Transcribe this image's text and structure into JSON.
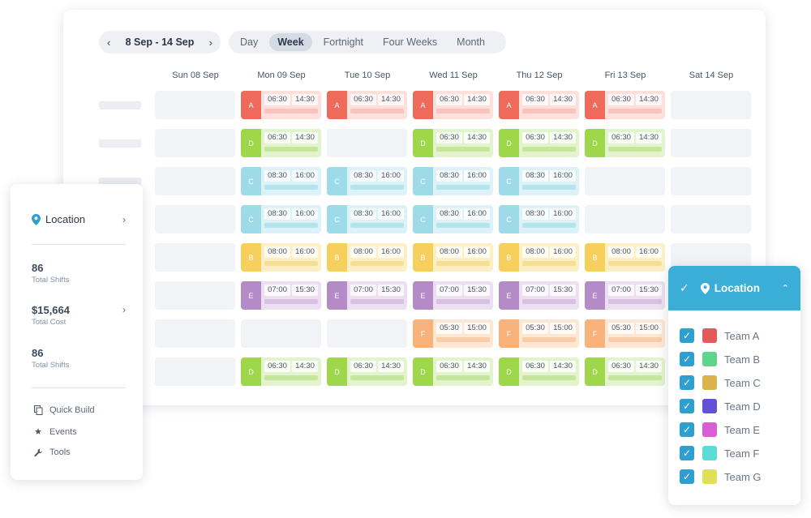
{
  "schedule": {
    "date_range": "8 Sep - 14 Sep",
    "prev_icon": "‹",
    "next_icon": "›",
    "views": [
      "Day",
      "Week",
      "Fortnight",
      "Four Weeks",
      "Month"
    ],
    "active_view": "Week",
    "days": [
      "Sun 08 Sep",
      "Mon 09 Sep",
      "Tue 10 Sep",
      "Wed 11 Sep",
      "Thu 12 Sep",
      "Fri 13 Sep",
      "Sat 14 Sep"
    ],
    "rows": [
      {
        "team": "A",
        "start": "06:30",
        "end": "14:30",
        "days": [
          1,
          2,
          3,
          4,
          5
        ]
      },
      {
        "team": "D",
        "start": "06:30",
        "end": "14:30",
        "days": [
          1,
          3,
          4,
          5
        ]
      },
      {
        "team": "C",
        "start": "08:30",
        "end": "16:00",
        "days": [
          1,
          2,
          3,
          4
        ]
      },
      {
        "team": "C",
        "start": "08:30",
        "end": "16:00",
        "days": [
          1,
          2,
          3,
          4
        ]
      },
      {
        "team": "B",
        "start": "08:00",
        "end": "16:00",
        "days": [
          1,
          2,
          3,
          4,
          5
        ]
      },
      {
        "team": "E",
        "start": "07:00",
        "end": "15:30",
        "days": [
          1,
          2,
          3,
          4,
          5
        ]
      },
      {
        "team": "F",
        "start": "05:30",
        "end": "15:00",
        "days": [
          3,
          4,
          5
        ]
      },
      {
        "team": "D",
        "start": "06:30",
        "end": "14:30",
        "days": [
          1,
          2,
          3,
          4,
          5
        ]
      }
    ],
    "team_colors": {
      "A": {
        "tag": "#ee6a5b",
        "bg": "#fde0dc",
        "bar": "#f8c4bd"
      },
      "B": {
        "tag": "#f6cf5d",
        "bg": "#fcefc4",
        "bar": "#f7df93"
      },
      "C": {
        "tag": "#9edbe8",
        "bg": "#ddf2f7",
        "bar": "#b5e3ee"
      },
      "D": {
        "tag": "#9ed74a",
        "bg": "#e2f3cd",
        "bar": "#c6e79b"
      },
      "E": {
        "tag": "#b48ac7",
        "bg": "#ecdff1",
        "bar": "#d7c0e1"
      },
      "F": {
        "tag": "#f9b27a",
        "bg": "#fde6d2",
        "bar": "#f8cda7"
      }
    }
  },
  "sidebar": {
    "location_label": "Location",
    "stats": [
      {
        "value": "86",
        "caption": "Total Shifts"
      },
      {
        "value": "$15,664",
        "caption": "Total Cost"
      },
      {
        "value": "86",
        "caption": "Total Shifts"
      }
    ],
    "menu": [
      {
        "label": "Quick Build",
        "icon": "copy-icon"
      },
      {
        "label": "Events",
        "icon": "star-icon"
      },
      {
        "label": "Tools",
        "icon": "wrench-icon"
      }
    ]
  },
  "filter": {
    "location_label": "Location",
    "teams": [
      {
        "name": "Team A",
        "color": "#e45a5a",
        "checked": true
      },
      {
        "name": "Team B",
        "color": "#5dd68c",
        "checked": true
      },
      {
        "name": "Team C",
        "color": "#dcb34a",
        "checked": true
      },
      {
        "name": "Team D",
        "color": "#6450d4",
        "checked": true
      },
      {
        "name": "Team E",
        "color": "#d65fd6",
        "checked": true
      },
      {
        "name": "Team F",
        "color": "#5cdcd4",
        "checked": true
      },
      {
        "name": "Team G",
        "color": "#dfe05a",
        "checked": true
      }
    ]
  }
}
